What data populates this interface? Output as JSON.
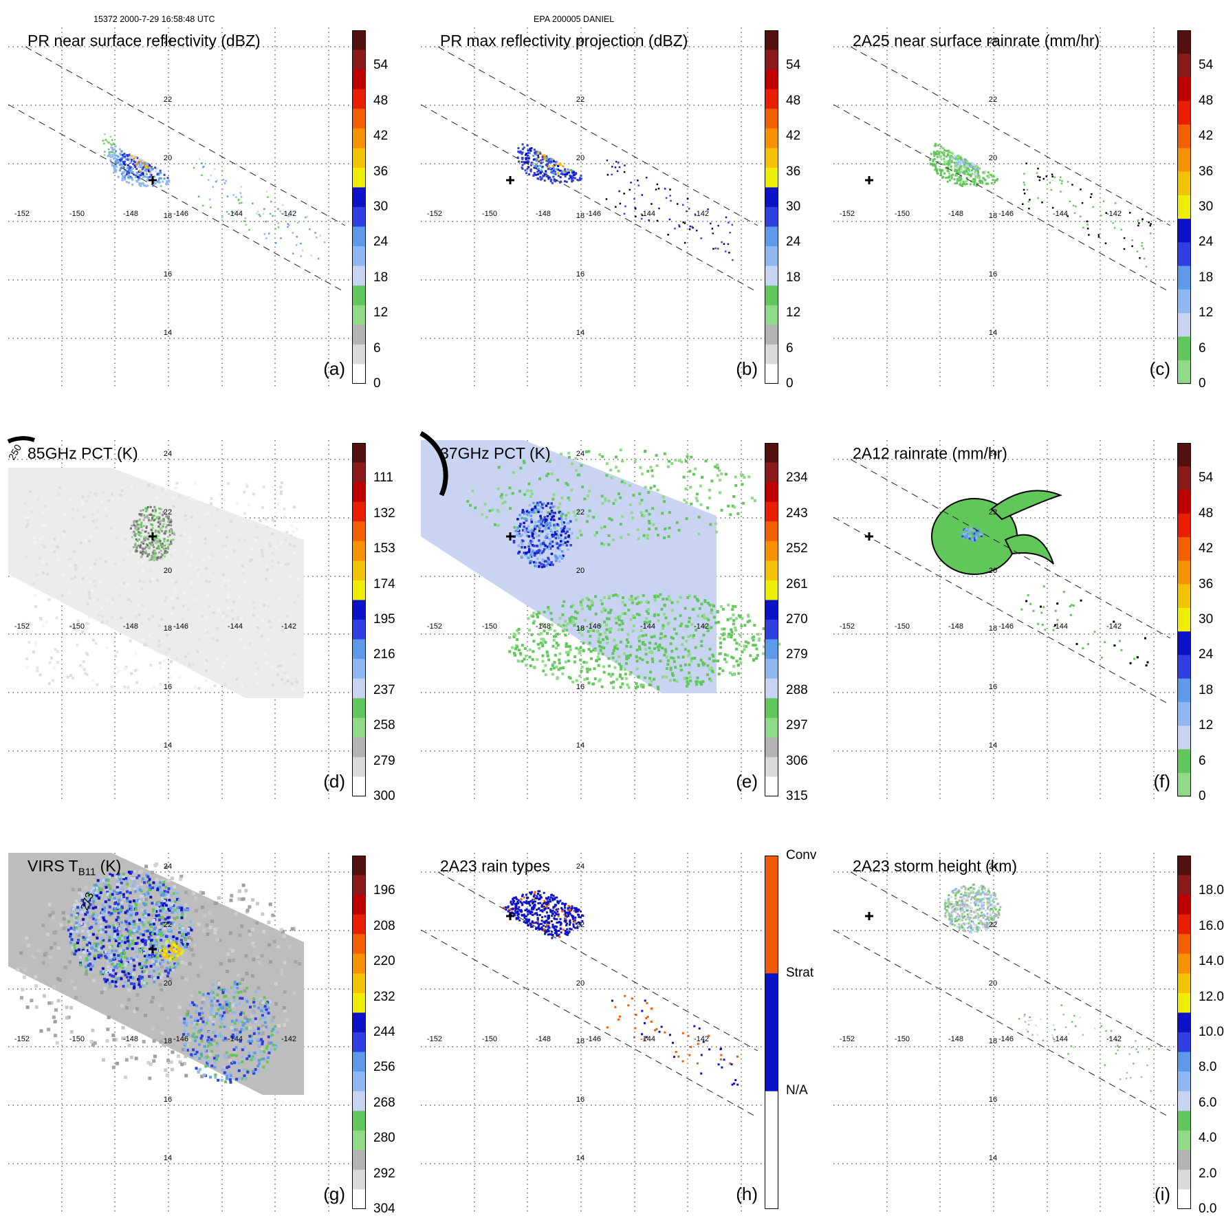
{
  "header": {
    "orbit_time": "15372 2000-7-29 16:58:48 UTC",
    "storm": "EPA 200005 DANIEL"
  },
  "axes": {
    "lon_labels": [
      "-152",
      "-150",
      "-148",
      "-146",
      "-144",
      "-142"
    ],
    "lat_labels": [
      "24",
      "22",
      "20",
      "18",
      "16",
      "14"
    ]
  },
  "colors": {
    "dbz_scale": [
      "#ffffff",
      "#d9d9d9",
      "#b3b3b3",
      "#8fd987",
      "#62c75a",
      "#c9d4f2",
      "#8fb7f0",
      "#5d9bea",
      "#2f3fe0",
      "#0c12c8",
      "#f0ee00",
      "#f3c200",
      "#f99200",
      "#f36000",
      "#e81e00",
      "#c00000",
      "#8b1a1a",
      "#551010"
    ],
    "rain_scale": [
      "#8fd987",
      "#62c75a",
      "#c9d4f2",
      "#8fb7f0",
      "#5d9bea",
      "#2f3fe0",
      "#0c12c8",
      "#f0ee00",
      "#f3c200",
      "#f99200",
      "#f36000",
      "#e81e00",
      "#c00000",
      "#8b1a1a",
      "#551010"
    ],
    "raintype_scale": [
      "#ffffff",
      "#0c12c8",
      "#f35a00"
    ]
  },
  "panels": [
    {
      "title": "PR near surface reflectivity (dBZ)",
      "label": "(a)",
      "ticks": [
        "54",
        "48",
        "42",
        "36",
        "30",
        "24",
        "18",
        "12",
        "6",
        "0"
      ]
    },
    {
      "title": "PR max reflectivity projection (dBZ)",
      "label": "(b)",
      "ticks": [
        "54",
        "48",
        "42",
        "36",
        "30",
        "24",
        "18",
        "12",
        "6",
        "0"
      ]
    },
    {
      "title": "2A25 near surface rainrate (mm/hr)",
      "label": "(c)",
      "ticks": [
        "54",
        "48",
        "42",
        "36",
        "30",
        "24",
        "18",
        "12",
        "6",
        "0"
      ]
    },
    {
      "title": "85GHz PCT (K)",
      "label": "(d)",
      "ticks": [
        "111",
        "132",
        "153",
        "174",
        "195",
        "216",
        "237",
        "258",
        "279",
        "300"
      ]
    },
    {
      "title": "37GHz PCT (K)",
      "label": "(e)",
      "ticks": [
        "234",
        "243",
        "252",
        "261",
        "270",
        "279",
        "288",
        "297",
        "306",
        "315"
      ]
    },
    {
      "title": "2A12 rainrate (mm/hr)",
      "label": "(f)",
      "ticks": [
        "54",
        "48",
        "42",
        "36",
        "30",
        "24",
        "18",
        "12",
        "6",
        "0"
      ]
    },
    {
      "title_main": "VIRS T",
      "title_sub": "B11",
      "title_unit": " (K)",
      "label": "(g)",
      "ticks": [
        "196",
        "208",
        "220",
        "232",
        "244",
        "256",
        "268",
        "280",
        "292",
        "304"
      ]
    },
    {
      "title": "2A23 rain types",
      "label": "(h)",
      "ticks": [
        "Conv",
        "Strat",
        "N/A"
      ]
    },
    {
      "title": "2A23 storm height (km)",
      "label": "(i)",
      "ticks": [
        "18.0",
        "16.0",
        "14.0",
        "12.0",
        "10.0",
        "8.0",
        "6.0",
        "4.0",
        "2.0",
        "0.0"
      ]
    }
  ],
  "contour_labels": {
    "d": "250",
    "g": "273"
  }
}
